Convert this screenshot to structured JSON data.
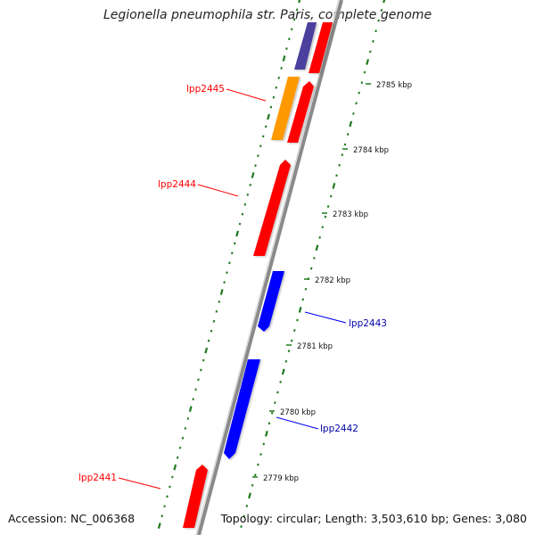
{
  "title": "Legionella pneumophila str. Paris, complete genome",
  "footer": {
    "accession": "Accession: NC_006368",
    "summary": "Topology: circular; Length: 3,503,610 bp; Genes: 3,080"
  },
  "colors": {
    "forward_gene": "#ff0000",
    "reverse_gene": "#0000ff",
    "orange_feature": "#ff9900",
    "purple_feature": "#4b3f9e",
    "backbone": "#8a8a8a",
    "gc_skew_ticks": "#1e7a1e"
  },
  "ticks": [
    {
      "label": "2785 kbp"
    },
    {
      "label": "2784 kbp"
    },
    {
      "label": "2783 kbp"
    },
    {
      "label": "2782 kbp"
    },
    {
      "label": "2781 kbp"
    },
    {
      "label": "2780 kbp"
    },
    {
      "label": "2779 kbp"
    }
  ],
  "gene_labels": [
    {
      "name": "lpp2445",
      "strand": "forward"
    },
    {
      "name": "lpp2444",
      "strand": "forward"
    },
    {
      "name": "lpp2443",
      "strand": "reverse"
    },
    {
      "name": "lpp2442",
      "strand": "reverse"
    },
    {
      "name": "lpp2441",
      "strand": "forward"
    }
  ]
}
